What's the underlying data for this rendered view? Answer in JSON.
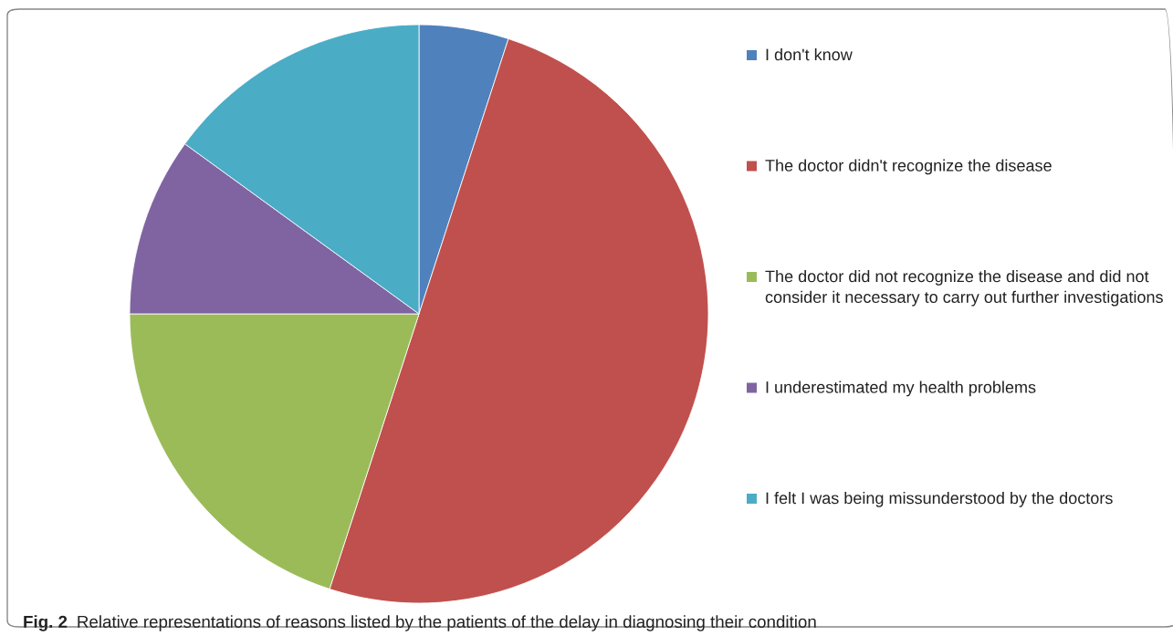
{
  "chart_data": {
    "type": "pie",
    "categories": [
      "I don't know",
      "The doctor didn't recognize the disease",
      "The doctor did not recognize the disease and did not consider it necessary to carry out further investigations",
      "I underestimated my health problems",
      "I felt I was being missunderstood by the doctors"
    ],
    "values": [
      5,
      50,
      20,
      10,
      15
    ],
    "colors": [
      "#4f81bd",
      "#c0504d",
      "#9bbb59",
      "#8064a2",
      "#4bacc6"
    ],
    "legend": "right",
    "annotations": [
      "Fig. 2",
      "Relative representations of reasons listed by the patients of the delay in diagnosing their condition"
    ]
  }
}
